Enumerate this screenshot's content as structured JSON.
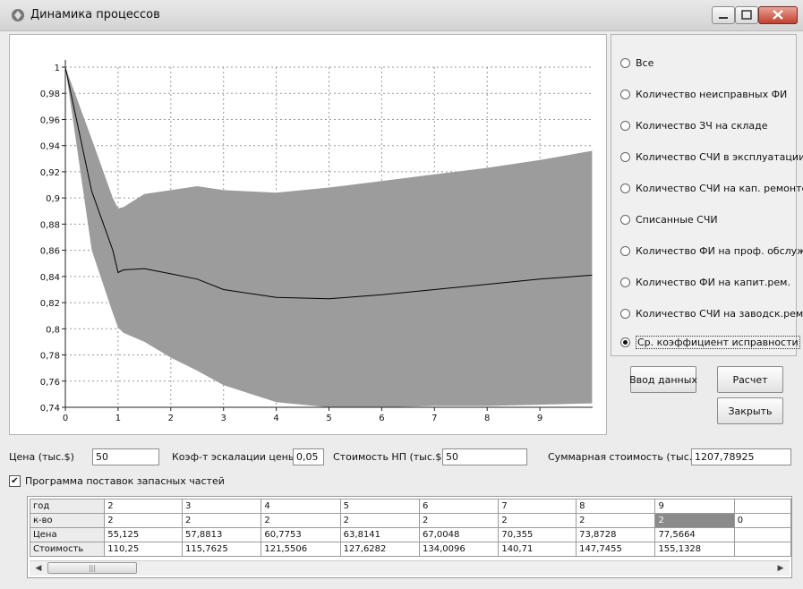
{
  "window": {
    "title": "Динамика процессов"
  },
  "chart_data": {
    "type": "area",
    "x": [
      0,
      0.5,
      0.9,
      1.0,
      1.1,
      1.5,
      2.0,
      2.5,
      3.0,
      4.0,
      5.0,
      6.0,
      7.0,
      8.0,
      9.0,
      9.99
    ],
    "series": [
      {
        "role": "mean",
        "values": [
          1.0,
          0.905,
          0.86,
          0.843,
          0.845,
          0.846,
          0.842,
          0.838,
          0.83,
          0.824,
          0.823,
          0.826,
          0.83,
          0.834,
          0.838,
          0.841
        ]
      },
      {
        "role": "upper",
        "values": [
          1.0,
          0.945,
          0.9,
          0.892,
          0.893,
          0.903,
          0.906,
          0.909,
          0.906,
          0.904,
          0.908,
          0.913,
          0.918,
          0.923,
          0.929,
          0.936
        ]
      },
      {
        "role": "lower",
        "values": [
          1.0,
          0.86,
          0.812,
          0.801,
          0.797,
          0.79,
          0.778,
          0.768,
          0.757,
          0.744,
          0.74,
          0.74,
          0.741,
          0.741,
          0.742,
          0.743
        ]
      }
    ],
    "xlim": [
      0,
      10
    ],
    "ylim": [
      0.74,
      1
    ],
    "x_ticks": [
      "0",
      "1",
      "2",
      "3",
      "4",
      "5",
      "6",
      "7",
      "8",
      "9"
    ],
    "y_ticks": [
      "0,74",
      "0,76",
      "0,78",
      "0,8",
      "0,82",
      "0,84",
      "0,86",
      "0,88",
      "0,9",
      "0,92",
      "0,94",
      "0,96",
      "0,98",
      "1"
    ],
    "grid": true,
    "band_color": "#9c9c9c",
    "line_color": "#000000",
    "xlabel": "",
    "ylabel": ""
  },
  "options": [
    {
      "label": "Все",
      "checked": false
    },
    {
      "label": "Количество неисправных ФИ",
      "checked": false
    },
    {
      "label": "Количество ЗЧ на складе",
      "checked": false
    },
    {
      "label": "Количество СЧИ в эксплуатации",
      "checked": false
    },
    {
      "label": "Количество СЧИ на  кап. ремонте",
      "checked": false
    },
    {
      "label": "Списанные  СЧИ",
      "checked": false
    },
    {
      "label": "Количество ФИ на проф. обслуж.",
      "checked": false
    },
    {
      "label": "Количество ФИ на капит.рем.",
      "checked": false
    },
    {
      "label": "Количество СЧИ на заводск.рем",
      "checked": false
    },
    {
      "label": "Ср. коэффициент  исправности",
      "checked": true
    }
  ],
  "buttons": {
    "input": "Ввод данных",
    "calc": "Расчет",
    "close": "Закрыть"
  },
  "params": {
    "price_label": "Цена (тыс.$)",
    "price_value": "50",
    "escal_label": "Коэф-т эскалации цены",
    "escal_value": "0,05",
    "np_label": "Стоимость НП (тыс.$)",
    "np_value": "50",
    "total_label": "Суммарная стоимость (тыс.$)",
    "total_value": "1207,78925"
  },
  "program": {
    "label": "Программа поставок запасных частей",
    "checked": true
  },
  "table": {
    "rows": [
      [
        "год",
        "2",
        "3",
        "4",
        "5",
        "6",
        "7",
        "8",
        "9",
        ""
      ],
      [
        "к-во",
        "2",
        "2",
        "2",
        "2",
        "2",
        "2",
        "2",
        "2",
        "0"
      ],
      [
        "Цена",
        "55,125",
        "57,8813",
        "60,7753",
        "63,8141",
        "67,0048",
        "70,355",
        "73,8728",
        "77,5664",
        ""
      ],
      [
        "Стоимость",
        "110,25",
        "115,7625",
        "121,5506",
        "127,6282",
        "134,0096",
        "140,71",
        "147,7455",
        "155,1328",
        ""
      ]
    ],
    "selected": [
      1,
      8
    ]
  }
}
